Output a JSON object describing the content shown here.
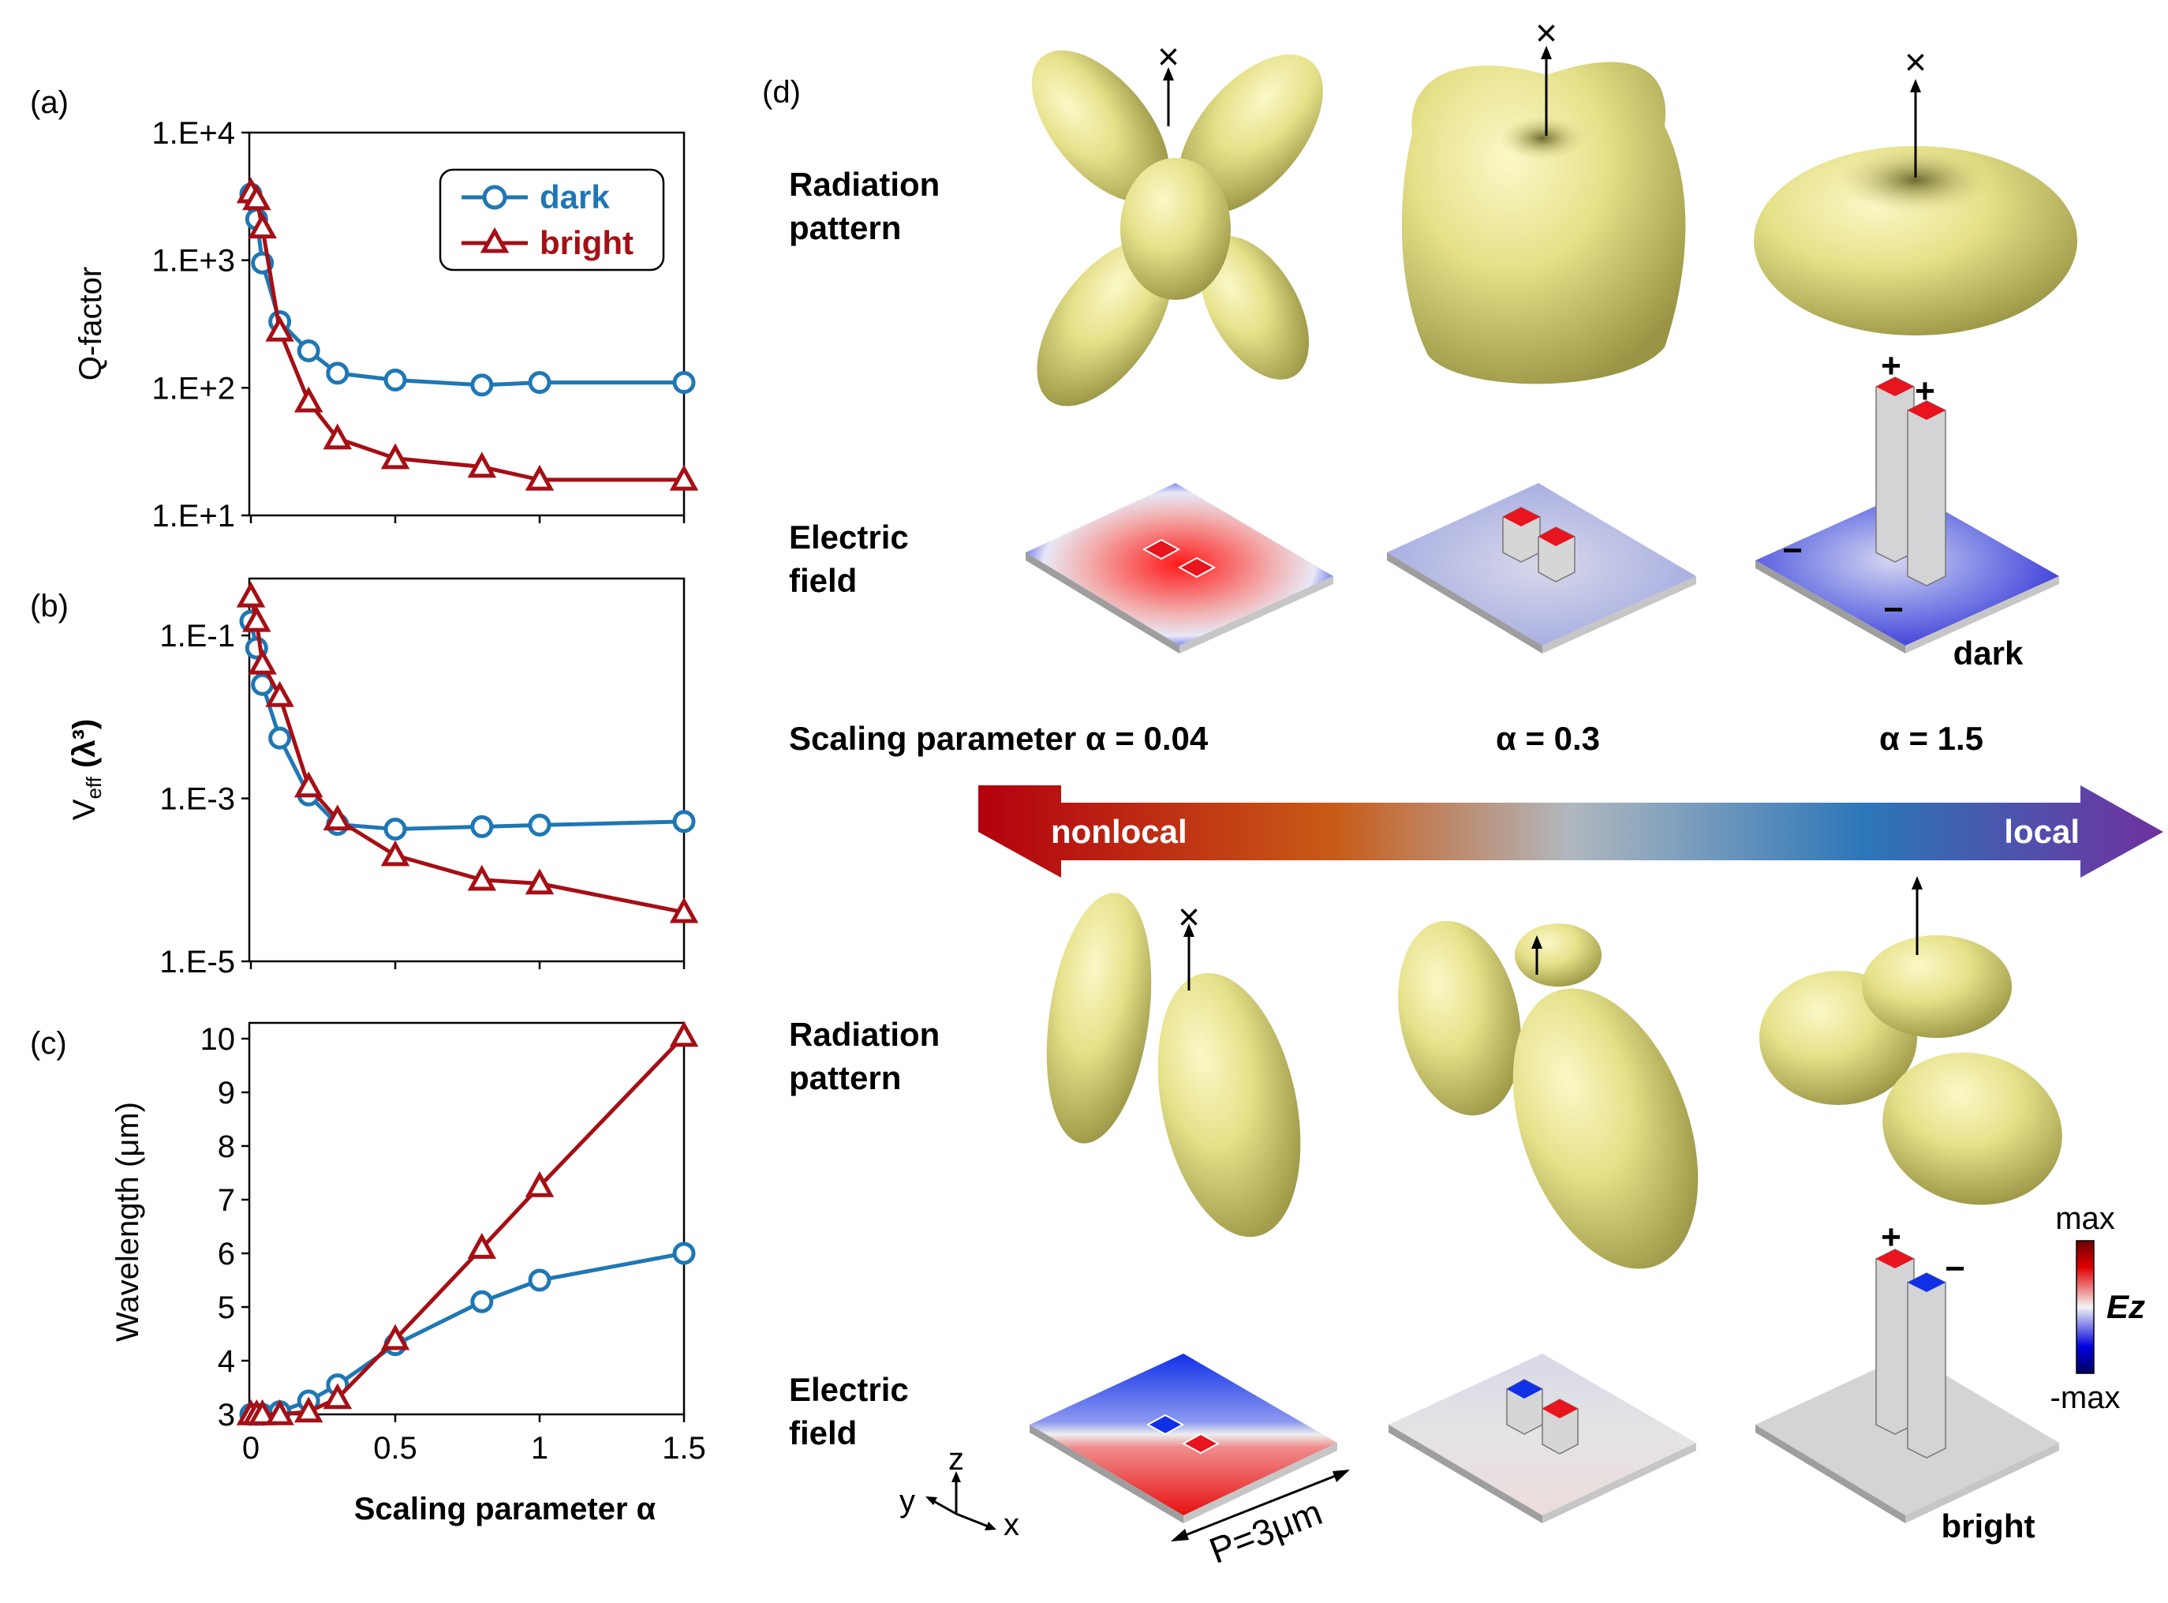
{
  "chart_data": [
    {
      "panel": "(a)",
      "type": "line",
      "scale": "log",
      "ylabel": "Q-factor",
      "xlim": [
        0,
        1.5
      ],
      "ylim": [
        10,
        10000
      ],
      "yticks": [
        10,
        100,
        1000,
        10000
      ],
      "yticklabels": [
        "1.E+1",
        "1.E+2",
        "1.E+3",
        "1.E+4"
      ],
      "x": [
        0,
        0.02,
        0.04,
        0.1,
        0.2,
        0.3,
        0.5,
        0.8,
        1.0,
        1.5
      ],
      "series": [
        {
          "name": "dark",
          "values": [
            3300,
            2100,
            950,
            330,
            195,
            130,
            115,
            105,
            110,
            110
          ]
        },
        {
          "name": "bright",
          "values": [
            3400,
            3000,
            1800,
            280,
            78,
            40,
            28,
            24,
            19,
            19
          ]
        }
      ]
    },
    {
      "panel": "(b)",
      "type": "line",
      "scale": "log",
      "ylabel_main": "V",
      "ylabel_sub": "eff",
      "ylabel_rest": " (λ³)",
      "xlim": [
        0,
        1.5
      ],
      "ylim": [
        1e-05,
        0.5
      ],
      "yticks": [
        1e-05,
        0.001,
        0.1
      ],
      "yticklabels": [
        "1.E-5",
        "1.E-3",
        "1.E-1"
      ],
      "x": [
        0,
        0.02,
        0.04,
        0.1,
        0.2,
        0.3,
        0.5,
        0.8,
        1.0,
        1.5
      ],
      "series": [
        {
          "name": "dark",
          "values": [
            0.15,
            0.07,
            0.025,
            0.0055,
            0.0011,
            0.00048,
            0.00042,
            0.00045,
            0.00047,
            0.00052
          ]
        },
        {
          "name": "bright",
          "values": [
            0.3,
            0.15,
            0.045,
            0.018,
            0.0014,
            0.00055,
            0.0002,
            0.0001,
            9e-05,
            4e-05
          ]
        }
      ]
    },
    {
      "panel": "(c)",
      "type": "line",
      "scale": "linear",
      "ylabel": "Wavelength (μm)",
      "xlabel": "Scaling parameter α",
      "xlim": [
        0,
        1.5
      ],
      "ylim": [
        3,
        10
      ],
      "yticks": [
        3,
        4,
        5,
        6,
        7,
        8,
        9,
        10
      ],
      "yticklabels": [
        "3",
        "4",
        "5",
        "6",
        "7",
        "8",
        "9",
        "10"
      ],
      "xticks": [
        0,
        0.5,
        1,
        1.5
      ],
      "xticklabels": [
        "0",
        "0.5",
        "1",
        "1.5"
      ],
      "x": [
        0,
        0.02,
        0.04,
        0.1,
        0.2,
        0.3,
        0.5,
        0.8,
        1.0,
        1.5
      ],
      "series": [
        {
          "name": "dark",
          "values": [
            3.0,
            3.0,
            3.0,
            3.05,
            3.25,
            3.55,
            4.3,
            5.1,
            5.5,
            6.0
          ]
        },
        {
          "name": "bright",
          "values": [
            3.0,
            3.0,
            3.0,
            3.0,
            3.05,
            3.3,
            4.4,
            6.1,
            7.25,
            10.05
          ]
        }
      ]
    }
  ],
  "legend": {
    "dark": "dark",
    "bright": "bright"
  },
  "colors": {
    "dark": "#1f77b4",
    "bright": "#a50f15",
    "pattern": "#e5e184"
  },
  "panel_d": {
    "label": "(d)",
    "radiation_line1": "Radiation",
    "radiation_line2": "pattern",
    "electric_line1": "Electric",
    "electric_line2": "field",
    "scaling_text": "Scaling parameter  α = 0.04",
    "alpha_mid": "α = 0.3",
    "alpha_right": "α = 1.5",
    "arrow_left": "nonlocal",
    "arrow_right": "local",
    "dark_label": "dark",
    "bright_label": "bright",
    "period_label": "P=3μm",
    "cross_mark": "×",
    "plus_sign": "+",
    "minus_sign": "−",
    "colorbar_max": "max",
    "colorbar_min": "-max",
    "colorbar_title": "Ez",
    "axis_x": "x",
    "axis_y": "y",
    "axis_z": "z"
  }
}
